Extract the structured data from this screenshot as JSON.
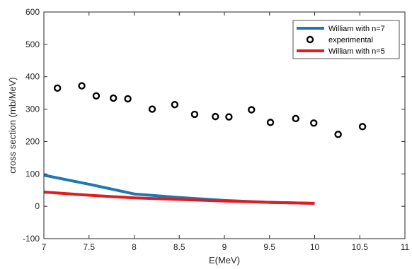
{
  "chart_data": {
    "type": "line",
    "title": "",
    "xlabel": "E(MeV)",
    "ylabel": "cross section (mb/MeV)",
    "xlim": [
      7,
      11
    ],
    "ylim": [
      -100,
      600
    ],
    "xticks": [
      7,
      7.5,
      8,
      8.5,
      9,
      9.5,
      10,
      10.5,
      11
    ],
    "xtick_labels": [
      "7",
      "7.5",
      "8",
      "8.5",
      "9",
      "9.5",
      "10",
      "10.5",
      "11"
    ],
    "yticks": [
      -100,
      0,
      100,
      200,
      300,
      400,
      500,
      600
    ],
    "ytick_labels": [
      "-100",
      "0",
      "100",
      "200",
      "300",
      "400",
      "500",
      "600"
    ],
    "grid": false,
    "legend_position": "top-right",
    "series": [
      {
        "name": "William with n=7",
        "kind": "line",
        "color": "#1f77b4",
        "x": [
          7,
          7.5,
          8,
          8.5,
          9,
          9.5,
          10
        ],
        "y": [
          96,
          68,
          38,
          27,
          18,
          12,
          9
        ]
      },
      {
        "name": "experimental",
        "kind": "marker",
        "color": "#000000",
        "x": [
          7.15,
          7.42,
          7.58,
          7.77,
          7.93,
          8.2,
          8.45,
          8.67,
          8.9,
          9.05,
          9.3,
          9.51,
          9.79,
          9.99,
          10.26,
          10.53
        ],
        "y": [
          365,
          372,
          341,
          334,
          332,
          300,
          314,
          284,
          277,
          276,
          298,
          259,
          271,
          257,
          222,
          246
        ]
      },
      {
        "name": "William with n=5",
        "kind": "line",
        "color": "#e41a1c",
        "x": [
          7,
          7.5,
          8,
          8.5,
          9,
          9.5,
          10
        ],
        "y": [
          44,
          34,
          26,
          21,
          16,
          12,
          9
        ]
      }
    ]
  }
}
